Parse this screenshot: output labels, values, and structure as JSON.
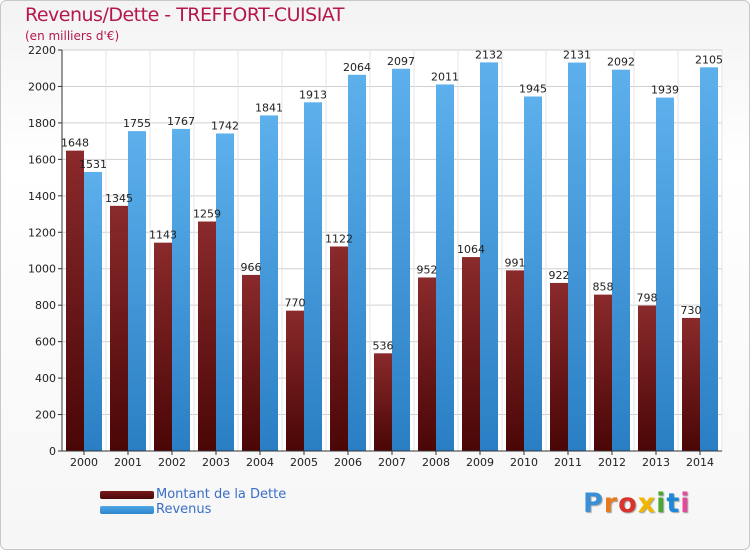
{
  "title": "Revenus/Dette - TREFFORT-CUISIAT",
  "subtitle": "(en milliers d'€)",
  "colors": {
    "title": "#b5174f",
    "debt": "#7a1a1c",
    "debt_dark": "#4a0808",
    "revenue": "#4fa6e4",
    "revenue_dark": "#2f86cc",
    "axis_text": "#222222",
    "grid": "#d0d0d0"
  },
  "legend": {
    "debt_label": "Montant de la Dette",
    "revenue_label": "Revenus",
    "position": "bottom-left"
  },
  "logo": {
    "text": "Proxiti"
  },
  "chart_data": {
    "type": "bar",
    "categories": [
      "2000",
      "2001",
      "2002",
      "2003",
      "2004",
      "2005",
      "2006",
      "2007",
      "2008",
      "2009",
      "2010",
      "2011",
      "2012",
      "2013",
      "2014"
    ],
    "series": [
      {
        "name": "Montant de la Dette",
        "values": [
          1648,
          1345,
          1143,
          1259,
          966,
          770,
          1122,
          536,
          952,
          1064,
          991,
          922,
          858,
          798,
          730
        ]
      },
      {
        "name": "Revenus",
        "values": [
          1531,
          1755,
          1767,
          1742,
          1841,
          1913,
          2064,
          2097,
          2011,
          2132,
          1945,
          2131,
          2092,
          1939,
          2105
        ]
      }
    ],
    "title": "Revenus/Dette - TREFFORT-CUISIAT",
    "ylim": [
      0,
      2200
    ],
    "yticks": [
      0,
      200,
      400,
      600,
      800,
      1000,
      1200,
      1400,
      1600,
      1800,
      2000,
      2200
    ],
    "grid": true
  }
}
